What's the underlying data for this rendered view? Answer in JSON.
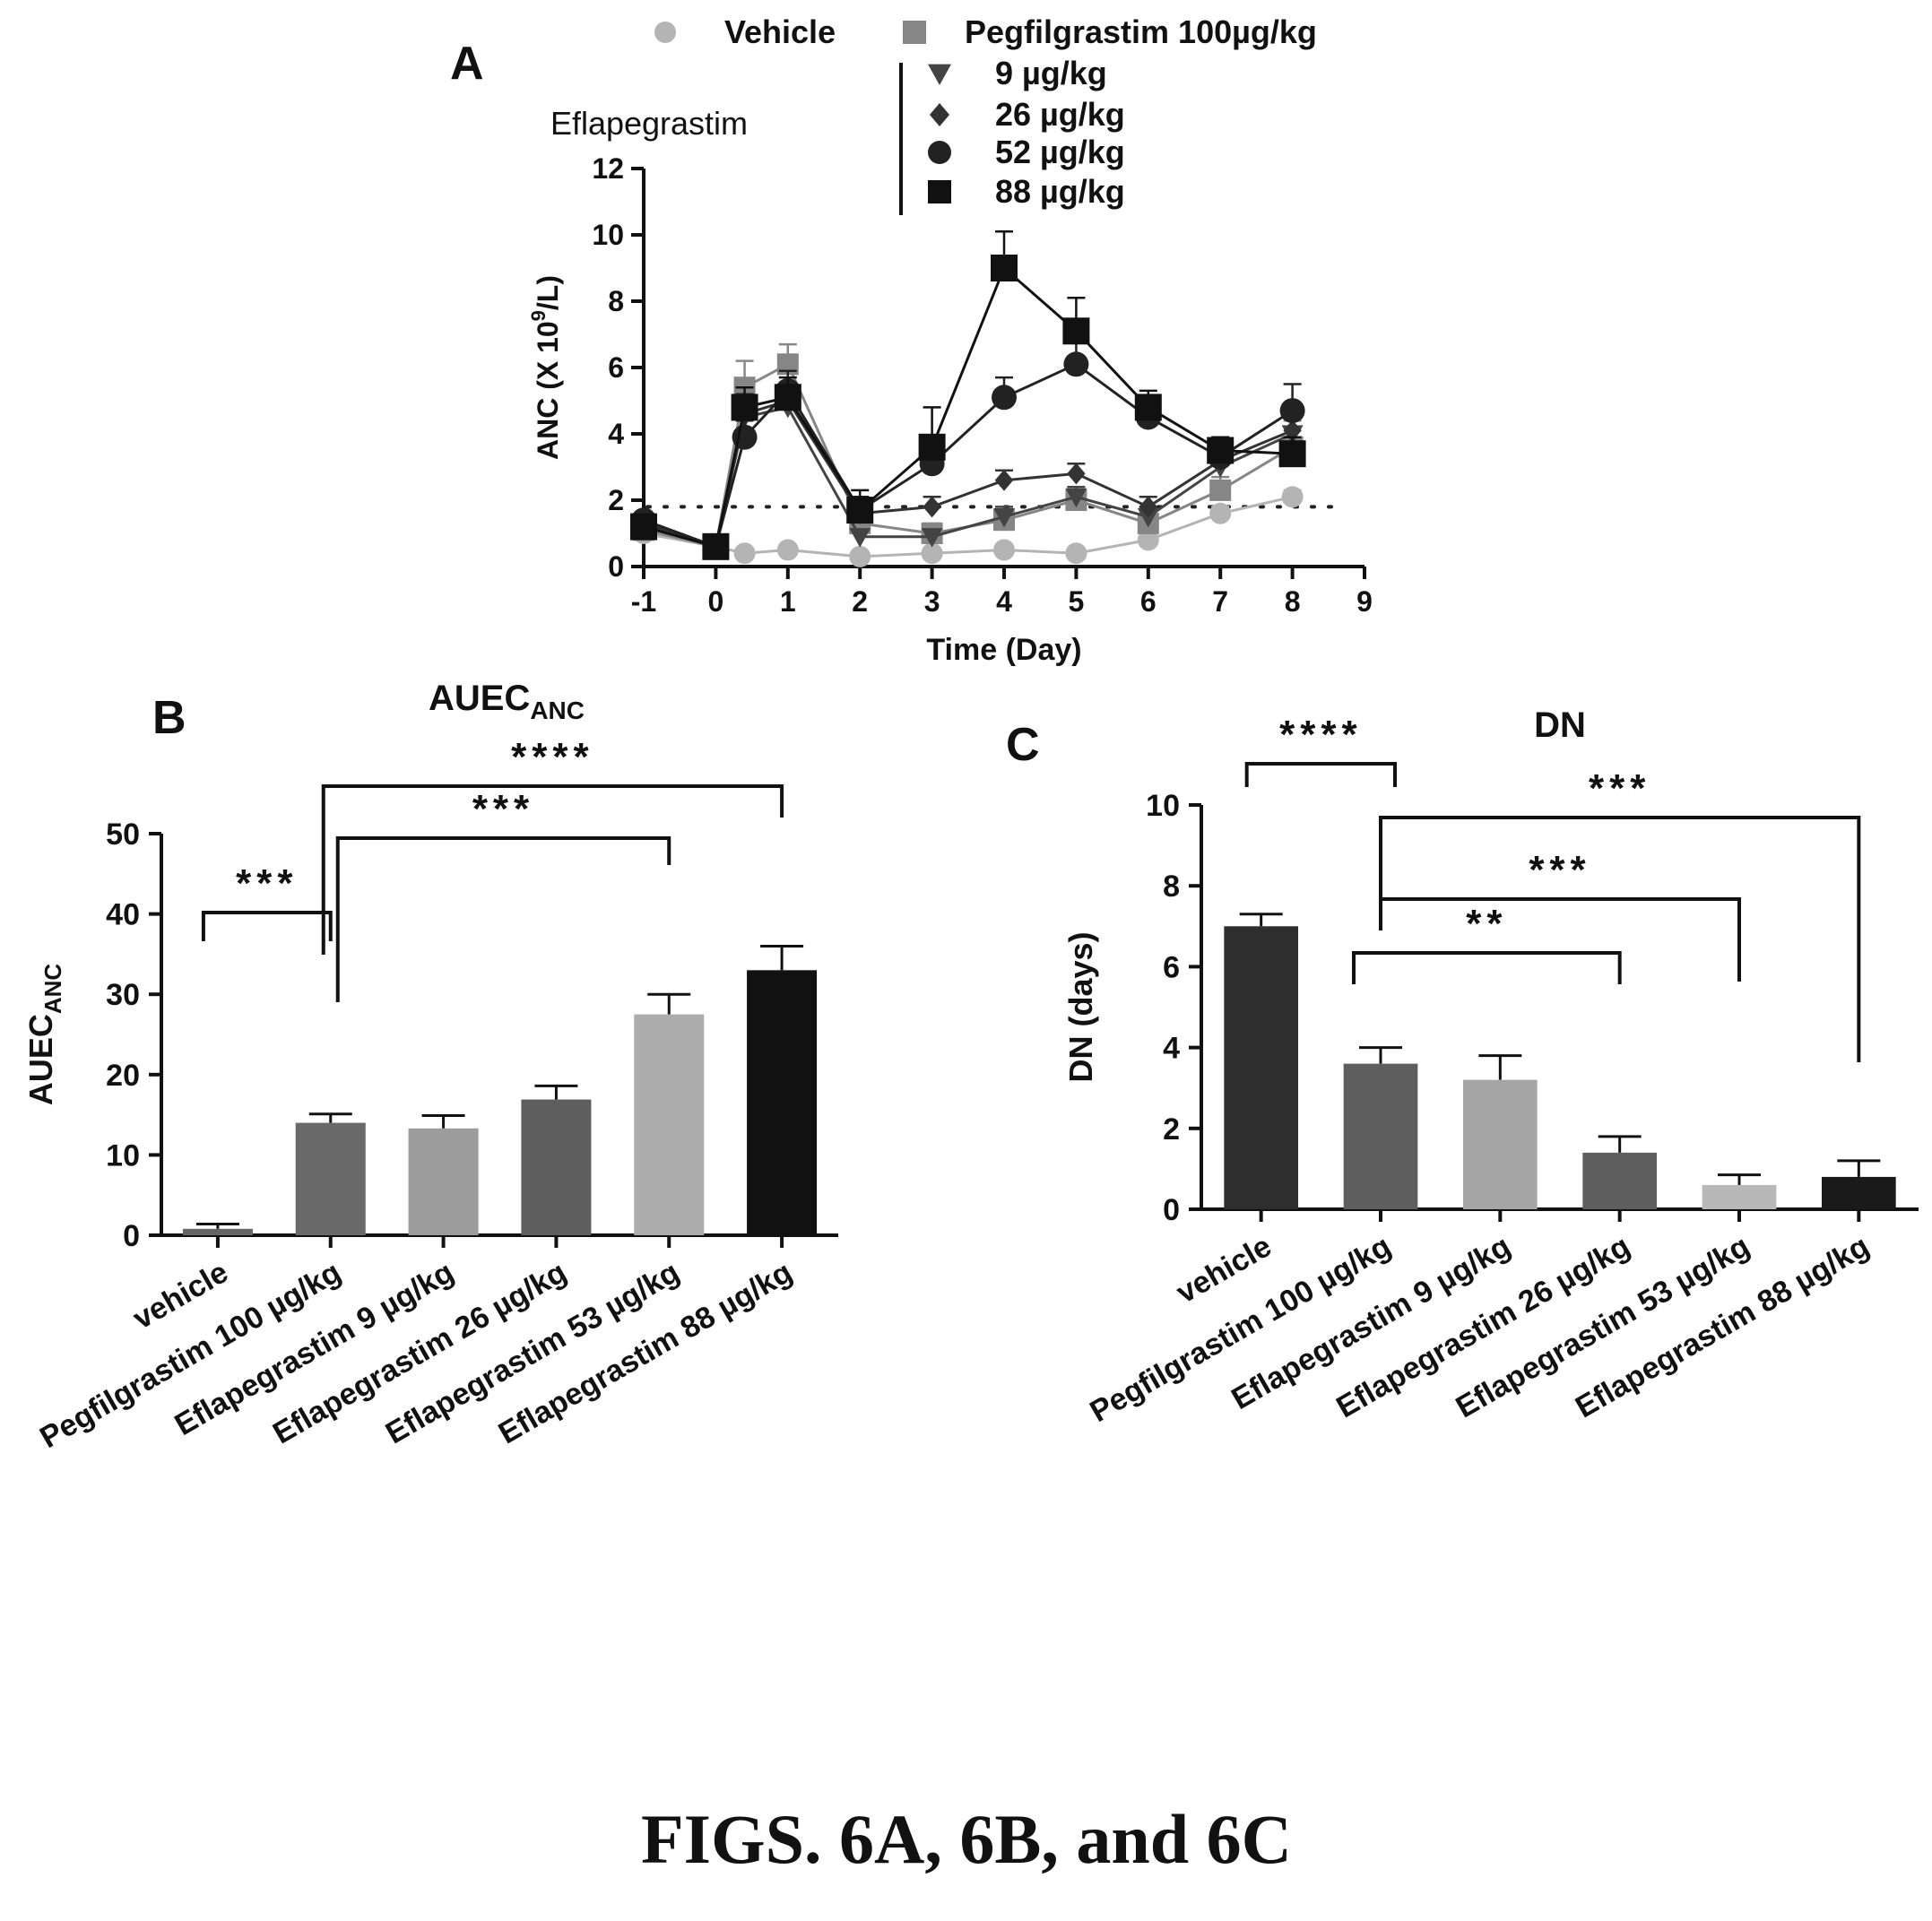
{
  "figure_caption": "FIGS. 6A, 6B, and 6C",
  "chart_data": [
    {
      "panel": "A",
      "type": "line",
      "xlabel": "Time (Day)",
      "ylabel": "ANC (X 10",
      "ylabel_sup": "9",
      "ylabel_tail": "/L)",
      "xlim": [
        -1,
        9
      ],
      "ylim": [
        0,
        12
      ],
      "xticks": [
        "-1",
        "0",
        "1",
        "2",
        "3",
        "4",
        "5",
        "6",
        "7",
        "8",
        "9"
      ],
      "yticks": [
        "0",
        "2",
        "4",
        "6",
        "8",
        "10",
        "12"
      ],
      "threshold_line": 1.8,
      "legend_group_label": "Eflapegrastim",
      "series": [
        {
          "name": "Vehicle",
          "marker": "circle",
          "color": "#b4b4b4",
          "x": [
            -1,
            0,
            0.4,
            1,
            2,
            3,
            4,
            5,
            6,
            7,
            8
          ],
          "y": [
            1.0,
            0.6,
            0.4,
            0.5,
            0.3,
            0.4,
            0.5,
            0.4,
            0.8,
            1.6,
            2.1
          ],
          "err": [
            0.1,
            0.1,
            0.1,
            0.1,
            0.1,
            0.1,
            0.1,
            0.1,
            0.1,
            0.2,
            0.2
          ]
        },
        {
          "name": "Pegfilgrastim 100µg/kg",
          "marker": "square",
          "color": "#868686",
          "x": [
            -1,
            0,
            0.4,
            1,
            2,
            3,
            4,
            5,
            6,
            7,
            8
          ],
          "y": [
            1.1,
            0.6,
            5.4,
            6.1,
            1.3,
            1.0,
            1.4,
            2.0,
            1.3,
            2.3,
            3.6
          ],
          "err": [
            0.2,
            0.1,
            0.8,
            0.6,
            0.3,
            0.3,
            0.3,
            0.3,
            0.3,
            0.4,
            0.8
          ]
        },
        {
          "name": "9 µg/kg",
          "marker": "triangle",
          "color": "#444444",
          "x": [
            -1,
            0,
            0.4,
            1,
            2,
            3,
            4,
            5,
            6,
            7,
            8
          ],
          "y": [
            1.3,
            0.6,
            4.5,
            4.8,
            0.9,
            0.9,
            1.5,
            2.1,
            1.5,
            3.0,
            4.0
          ],
          "err": [
            0.2,
            0.1,
            0.6,
            0.5,
            0.2,
            0.2,
            0.3,
            0.3,
            0.3,
            0.4,
            0.5
          ]
        },
        {
          "name": "26 µg/kg",
          "marker": "diamond",
          "color": "#333333",
          "x": [
            -1,
            0,
            0.4,
            1,
            2,
            3,
            4,
            5,
            6,
            7,
            8
          ],
          "y": [
            1.3,
            0.6,
            4.6,
            5.0,
            1.6,
            1.8,
            2.6,
            2.8,
            1.8,
            3.2,
            4.1
          ],
          "err": [
            0.2,
            0.1,
            0.6,
            0.5,
            0.3,
            0.3,
            0.3,
            0.3,
            0.3,
            0.4,
            0.5
          ]
        },
        {
          "name": "52 µg/kg",
          "marker": "circle",
          "color": "#222222",
          "x": [
            -1,
            0,
            0.4,
            1,
            2,
            3,
            4,
            5,
            6,
            7,
            8
          ],
          "y": [
            1.4,
            0.6,
            3.9,
            5.3,
            1.7,
            3.1,
            5.1,
            6.1,
            4.5,
            3.3,
            4.7
          ],
          "err": [
            0.2,
            0.1,
            0.5,
            0.6,
            0.4,
            0.6,
            0.6,
            0.9,
            0.6,
            0.4,
            0.8
          ]
        },
        {
          "name": "88 µg/kg",
          "marker": "square",
          "color": "#111111",
          "x": [
            -1,
            0,
            0.4,
            1,
            2,
            3,
            4,
            5,
            6,
            7,
            8
          ],
          "y": [
            1.2,
            0.6,
            4.8,
            5.1,
            1.7,
            3.6,
            9.0,
            7.1,
            4.8,
            3.5,
            3.4
          ],
          "err": [
            0.2,
            0.1,
            0.6,
            0.6,
            0.6,
            1.2,
            1.1,
            1.0,
            0.5,
            0.4,
            0.5
          ]
        }
      ]
    },
    {
      "panel": "B",
      "type": "bar",
      "title": "AUEC",
      "title_sub": "ANC",
      "ylabel": "AUEC",
      "ylabel_sub": "ANC",
      "ylim": [
        0,
        50
      ],
      "yticks": [
        "0",
        "10",
        "20",
        "30",
        "40",
        "50"
      ],
      "categories": [
        "vehicle",
        "Pegfilgrastim 100 µg/kg",
        "Eflapegrastim 9 µg/kg",
        "Eflapegrastim 26 µg/kg",
        "Eflapegrastim 53 µg/kg",
        "Eflapegrastim 88 µg/kg"
      ],
      "values": [
        0.8,
        14.0,
        13.3,
        16.9,
        27.5,
        33.0
      ],
      "errors": [
        0.6,
        1.1,
        1.6,
        1.7,
        2.5,
        3.0
      ],
      "colors": [
        "#666666",
        "#6a6a6a",
        "#9c9c9c",
        "#5e5e5e",
        "#acacac",
        "#111111"
      ],
      "significance": [
        {
          "from": 0,
          "to": 1,
          "label": "***"
        },
        {
          "from": 1,
          "to": 4,
          "label": "***"
        },
        {
          "from": 1,
          "to": 5,
          "label": "****"
        }
      ]
    },
    {
      "panel": "C",
      "type": "bar",
      "title": "DN",
      "ylabel": "DN (days)",
      "ylim": [
        0,
        10
      ],
      "yticks": [
        "0",
        "2",
        "4",
        "6",
        "8",
        "10"
      ],
      "categories": [
        "vehicle",
        "Pegfilgrastim 100 µg/kg",
        "Eflapegrastim 9 µg/kg",
        "Eflapegrastim 26 µg/kg",
        "Eflapegrastim 53 µg/kg",
        "Eflapegrastim 88 µg/kg"
      ],
      "values": [
        7.0,
        3.6,
        3.2,
        1.4,
        0.6,
        0.8
      ],
      "errors": [
        0.3,
        0.4,
        0.6,
        0.4,
        0.25,
        0.4
      ],
      "colors": [
        "#2e2e2e",
        "#5e5e5e",
        "#a6a6a6",
        "#5e5e5e",
        "#b8b8b8",
        "#1a1a1a"
      ],
      "significance": [
        {
          "from": 0,
          "to": 1,
          "label": "****"
        },
        {
          "from": 1,
          "to": 3,
          "label": "**"
        },
        {
          "from": 1,
          "to": 4,
          "label": "***"
        },
        {
          "from": 1,
          "to": 5,
          "label": "***"
        }
      ]
    }
  ]
}
